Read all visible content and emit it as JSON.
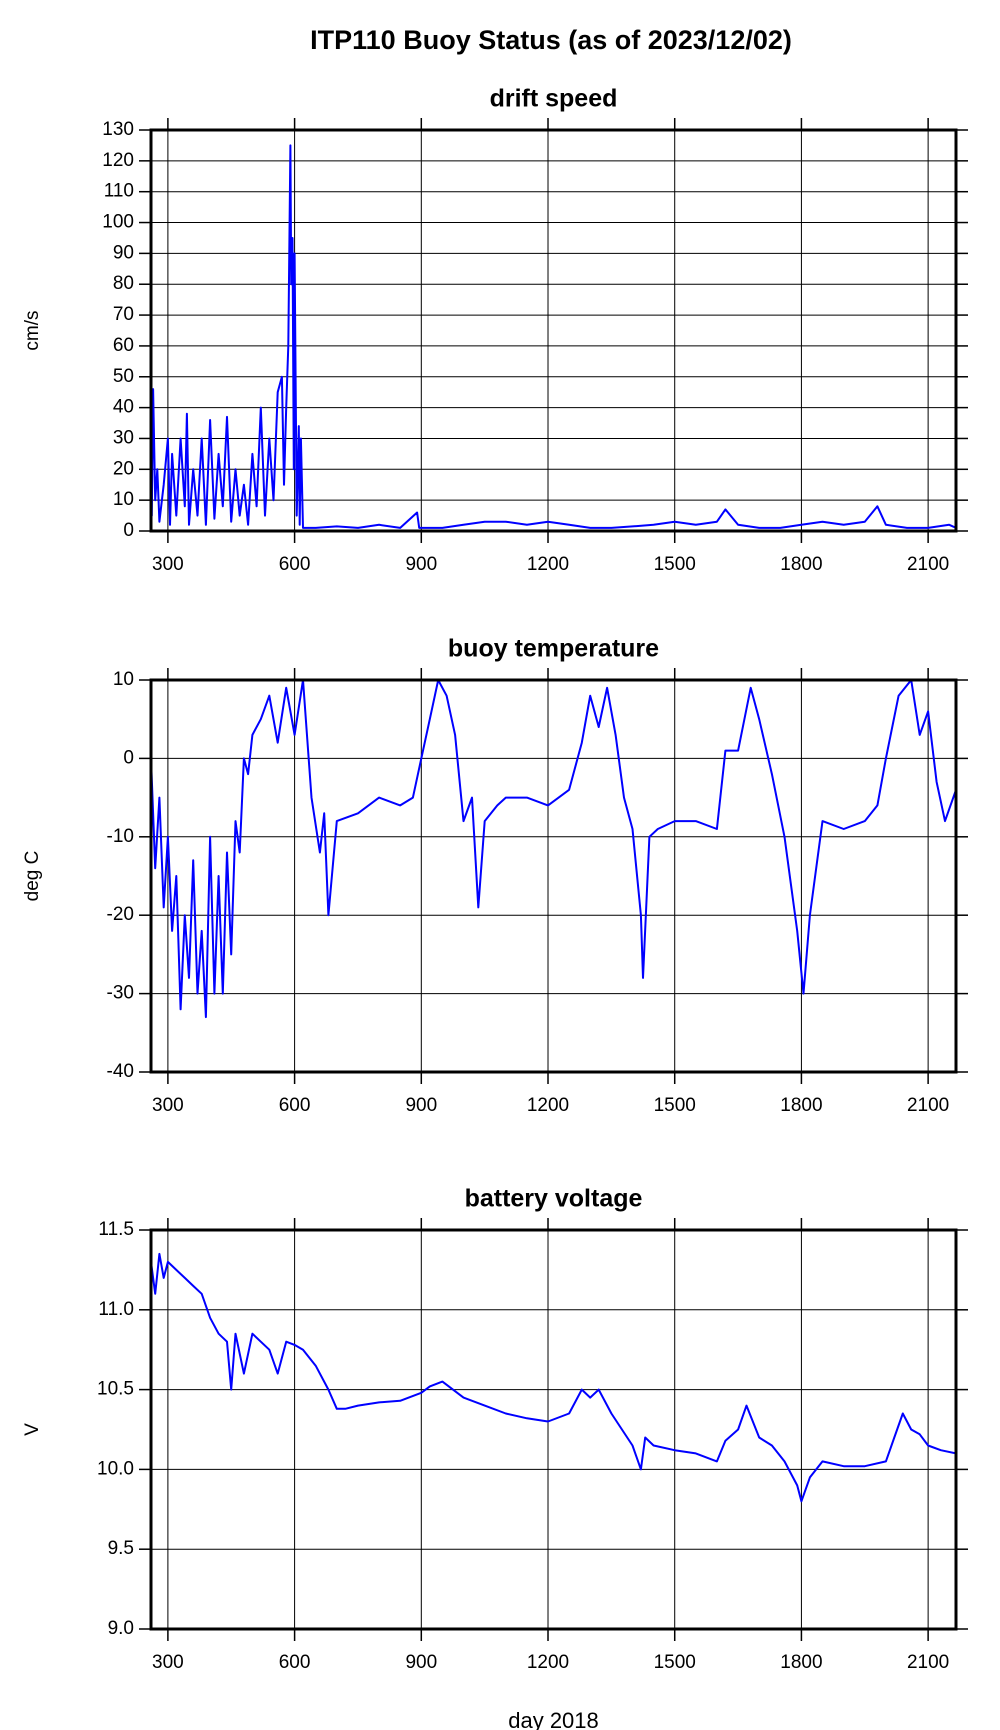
{
  "title": "ITP110 Buoy Status (as of 2023/12/02)",
  "chart_data": [
    {
      "type": "line",
      "title": "drift speed",
      "y_label": "cm/s",
      "color": "#0000ff",
      "grid": true,
      "xlim": [
        260,
        2166
      ],
      "xticks": [
        300,
        600,
        900,
        1200,
        1500,
        1800,
        2100
      ],
      "ylim": [
        0,
        130
      ],
      "yticks": [
        0,
        10,
        20,
        30,
        40,
        50,
        60,
        70,
        80,
        90,
        100,
        110,
        120,
        130
      ],
      "x": [
        260,
        262,
        265,
        270,
        275,
        280,
        290,
        300,
        305,
        310,
        320,
        330,
        340,
        345,
        350,
        360,
        370,
        380,
        390,
        400,
        410,
        420,
        430,
        440,
        450,
        460,
        470,
        480,
        490,
        500,
        510,
        520,
        530,
        540,
        550,
        560,
        570,
        575,
        580,
        585,
        590,
        592,
        595,
        598,
        600,
        605,
        610,
        612,
        615,
        620,
        650,
        700,
        750,
        800,
        850,
        890,
        895,
        900,
        950,
        1000,
        1050,
        1100,
        1150,
        1200,
        1250,
        1300,
        1350,
        1400,
        1450,
        1500,
        1550,
        1600,
        1620,
        1650,
        1700,
        1750,
        1800,
        1850,
        1900,
        1950,
        1980,
        2000,
        2050,
        2100,
        2150,
        2166
      ],
      "values": [
        40,
        5,
        46,
        10,
        20,
        3,
        15,
        30,
        2,
        25,
        5,
        30,
        8,
        38,
        2,
        20,
        5,
        30,
        2,
        36,
        4,
        25,
        8,
        37,
        3,
        20,
        5,
        15,
        2,
        25,
        8,
        40,
        5,
        30,
        10,
        45,
        50,
        15,
        40,
        60,
        125,
        80,
        95,
        20,
        90,
        5,
        34,
        2,
        30,
        1,
        1,
        1.5,
        1,
        2,
        1,
        6,
        1,
        1,
        1,
        2,
        3,
        3,
        2,
        3,
        2,
        1,
        1,
        1.5,
        2,
        3,
        2,
        3,
        7,
        2,
        1,
        1,
        2,
        3,
        2,
        3,
        8,
        2,
        1,
        1,
        2,
        1
      ]
    },
    {
      "type": "line",
      "title": "buoy temperature",
      "y_label": "deg C",
      "color": "#0000ff",
      "grid": true,
      "xlim": [
        260,
        2166
      ],
      "xticks": [
        300,
        600,
        900,
        1200,
        1500,
        1800,
        2100
      ],
      "ylim": [
        -40,
        10
      ],
      "yticks": [
        -40,
        -30,
        -20,
        -10,
        0,
        10
      ],
      "x": [
        260,
        270,
        280,
        290,
        300,
        310,
        320,
        330,
        340,
        350,
        360,
        370,
        380,
        390,
        400,
        410,
        420,
        430,
        440,
        450,
        460,
        470,
        480,
        490,
        500,
        520,
        540,
        560,
        580,
        600,
        620,
        640,
        660,
        670,
        680,
        700,
        750,
        800,
        850,
        880,
        900,
        920,
        940,
        960,
        980,
        1000,
        1020,
        1035,
        1050,
        1080,
        1100,
        1150,
        1200,
        1250,
        1280,
        1300,
        1320,
        1340,
        1360,
        1380,
        1400,
        1420,
        1425,
        1440,
        1460,
        1500,
        1550,
        1600,
        1620,
        1650,
        1680,
        1700,
        1730,
        1760,
        1790,
        1805,
        1820,
        1850,
        1900,
        1950,
        1980,
        2000,
        2030,
        2060,
        2080,
        2100,
        2120,
        2140,
        2166
      ],
      "values": [
        0,
        -14,
        -5,
        -19,
        -10,
        -22,
        -15,
        -32,
        -20,
        -28,
        -13,
        -30,
        -22,
        -33,
        -10,
        -30,
        -15,
        -30,
        -12,
        -25,
        -8,
        -12,
        0,
        -2,
        3,
        5,
        8,
        2,
        9,
        3,
        10,
        -5,
        -12,
        -7,
        -20,
        -8,
        -7,
        -5,
        -6,
        -5,
        0,
        5,
        10,
        8,
        3,
        -8,
        -5,
        -19,
        -8,
        -6,
        -5,
        -5,
        -6,
        -4,
        2,
        8,
        4,
        9,
        3,
        -5,
        -9,
        -20,
        -28,
        -10,
        -9,
        -8,
        -8,
        -9,
        1,
        1,
        9,
        5,
        -2,
        -10,
        -22,
        -30,
        -20,
        -8,
        -9,
        -8,
        -6,
        0,
        8,
        10,
        3,
        6,
        -3,
        -8,
        -4
      ]
    },
    {
      "type": "line",
      "title": "battery voltage",
      "y_label": "V",
      "x_label": "day 2018",
      "color": "#0000ff",
      "grid": true,
      "xlim": [
        260,
        2166
      ],
      "xticks": [
        300,
        600,
        900,
        1200,
        1500,
        1800,
        2100
      ],
      "ylim": [
        9,
        11.5
      ],
      "yticks": [
        {
          "value": 9,
          "label": "9.0"
        },
        9.5,
        {
          "value": 10,
          "label": "10.0"
        },
        10.5,
        {
          "value": 11,
          "label": "11.0"
        },
        11.5
      ],
      "x": [
        260,
        270,
        280,
        290,
        300,
        320,
        340,
        360,
        380,
        400,
        420,
        440,
        450,
        460,
        480,
        500,
        520,
        540,
        560,
        580,
        600,
        620,
        650,
        680,
        700,
        720,
        750,
        800,
        850,
        900,
        920,
        950,
        1000,
        1050,
        1100,
        1150,
        1200,
        1250,
        1280,
        1300,
        1320,
        1350,
        1400,
        1420,
        1430,
        1450,
        1500,
        1550,
        1600,
        1620,
        1650,
        1670,
        1700,
        1730,
        1760,
        1790,
        1800,
        1820,
        1850,
        1900,
        1950,
        2000,
        2020,
        2040,
        2060,
        2080,
        2100,
        2130,
        2166
      ],
      "values": [
        11.3,
        11.1,
        11.35,
        11.2,
        11.3,
        11.25,
        11.2,
        11.15,
        11.1,
        10.95,
        10.85,
        10.8,
        10.5,
        10.85,
        10.6,
        10.85,
        10.8,
        10.75,
        10.6,
        10.8,
        10.78,
        10.75,
        10.65,
        10.5,
        10.38,
        10.38,
        10.4,
        10.42,
        10.43,
        10.48,
        10.52,
        10.55,
        10.45,
        10.4,
        10.35,
        10.32,
        10.3,
        10.35,
        10.5,
        10.45,
        10.5,
        10.35,
        10.15,
        10,
        10.2,
        10.15,
        10.12,
        10.1,
        10.05,
        10.18,
        10.25,
        10.4,
        10.2,
        10.15,
        10.05,
        9.9,
        9.8,
        9.95,
        10.05,
        10.02,
        10.02,
        10.05,
        10.2,
        10.35,
        10.25,
        10.22,
        10.15,
        10.12,
        10.1
      ]
    }
  ]
}
